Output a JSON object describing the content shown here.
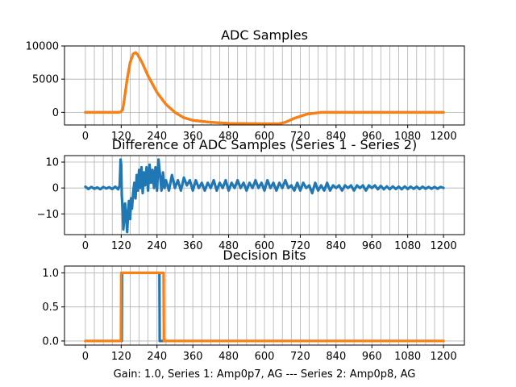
{
  "figure": {
    "footer": "Gain: 1.0, Series 1: Amp0p7, AG --- Series 2: Amp0p8, AG"
  },
  "colors": {
    "series1": "#1f77b4",
    "series2": "#ff7f0e"
  },
  "chart_data": [
    {
      "type": "line",
      "title": "ADC Samples",
      "xlim": [
        -70,
        1270
      ],
      "ylim": [
        -1900,
        10000
      ],
      "xticks": [
        0,
        120,
        240,
        360,
        480,
        600,
        720,
        840,
        960,
        1080,
        1200
      ],
      "xtick_labels": [
        "0",
        "120",
        "240",
        "360",
        "480",
        "600",
        "720",
        "840",
        "960",
        "1080",
        "1200"
      ],
      "yticks": [
        0,
        5000,
        10000
      ],
      "ytick_labels": [
        "0",
        "5000",
        "10000"
      ],
      "series": [
        {
          "name": "Series 1",
          "color": "#1f77b4",
          "points": [
            [
              0,
              0
            ],
            [
              110,
              0
            ],
            [
              118,
              50
            ],
            [
              125,
              400
            ],
            [
              130,
              1800
            ],
            [
              140,
              5000
            ],
            [
              150,
              7500
            ],
            [
              160,
              8800
            ],
            [
              168,
              9000
            ],
            [
              175,
              8700
            ],
            [
              190,
              7500
            ],
            [
              210,
              5500
            ],
            [
              240,
              3000
            ],
            [
              270,
              1200
            ],
            [
              300,
              0
            ],
            [
              330,
              -800
            ],
            [
              360,
              -1200
            ],
            [
              420,
              -1500
            ],
            [
              480,
              -1650
            ],
            [
              540,
              -1700
            ],
            [
              600,
              -1720
            ],
            [
              650,
              -1700
            ],
            [
              670,
              -1500
            ],
            [
              700,
              -900
            ],
            [
              740,
              -300
            ],
            [
              790,
              0
            ],
            [
              1200,
              0
            ]
          ]
        },
        {
          "name": "Series 2",
          "color": "#ff7f0e",
          "points": [
            [
              0,
              0
            ],
            [
              110,
              0
            ],
            [
              118,
              50
            ],
            [
              125,
              400
            ],
            [
              130,
              1800
            ],
            [
              140,
              5000
            ],
            [
              150,
              7500
            ],
            [
              160,
              8800
            ],
            [
              168,
              9000
            ],
            [
              175,
              8700
            ],
            [
              190,
              7500
            ],
            [
              210,
              5500
            ],
            [
              240,
              3000
            ],
            [
              270,
              1200
            ],
            [
              300,
              0
            ],
            [
              330,
              -800
            ],
            [
              360,
              -1200
            ],
            [
              420,
              -1500
            ],
            [
              480,
              -1650
            ],
            [
              540,
              -1700
            ],
            [
              600,
              -1720
            ],
            [
              650,
              -1700
            ],
            [
              670,
              -1500
            ],
            [
              700,
              -900
            ],
            [
              740,
              -300
            ],
            [
              790,
              0
            ],
            [
              1200,
              0
            ]
          ]
        }
      ]
    },
    {
      "type": "line",
      "title": "Difference of ADC Samples (Series 1 - Series 2)",
      "xlim": [
        -70,
        1270
      ],
      "ylim": [
        -18,
        12.5
      ],
      "xticks": [
        0,
        120,
        240,
        360,
        480,
        600,
        720,
        840,
        960,
        1080,
        1200
      ],
      "xtick_labels": [
        "0",
        "120",
        "240",
        "360",
        "480",
        "600",
        "720",
        "840",
        "960",
        "1080",
        "1200"
      ],
      "yticks": [
        -10,
        0,
        10
      ],
      "ytick_labels": [
        "−10",
        "0",
        "10"
      ],
      "series": [
        {
          "name": "Series 1 - Series 2",
          "color": "#1f77b4",
          "points": [
            [
              0,
              0.5
            ],
            [
              10,
              -0.4
            ],
            [
              20,
              0.4
            ],
            [
              30,
              -0.3
            ],
            [
              40,
              0.2
            ],
            [
              50,
              -0.5
            ],
            [
              60,
              0.4
            ],
            [
              70,
              -0.2
            ],
            [
              80,
              0.3
            ],
            [
              90,
              -0.4
            ],
            [
              100,
              0.5
            ],
            [
              110,
              -0.5
            ],
            [
              115,
              1
            ],
            [
              118,
              11
            ],
            [
              120,
              9
            ],
            [
              122,
              -3
            ],
            [
              125,
              -8
            ],
            [
              127,
              -16
            ],
            [
              130,
              -12
            ],
            [
              133,
              -6
            ],
            [
              136,
              -10
            ],
            [
              140,
              -17
            ],
            [
              143,
              -10
            ],
            [
              146,
              -5
            ],
            [
              150,
              -12
            ],
            [
              153,
              -4
            ],
            [
              156,
              -8
            ],
            [
              160,
              -2
            ],
            [
              164,
              2
            ],
            [
              168,
              -4
            ],
            [
              172,
              5
            ],
            [
              176,
              -1
            ],
            [
              180,
              7
            ],
            [
              184,
              0
            ],
            [
              188,
              8
            ],
            [
              192,
              -2
            ],
            [
              196,
              6
            ],
            [
              200,
              1
            ],
            [
              205,
              8
            ],
            [
              210,
              -1
            ],
            [
              215,
              9
            ],
            [
              220,
              2
            ],
            [
              225,
              7
            ],
            [
              230,
              0
            ],
            [
              235,
              8
            ],
            [
              240,
              -1
            ],
            [
              245,
              11
            ],
            [
              250,
              5
            ],
            [
              255,
              -1
            ],
            [
              260,
              6
            ],
            [
              265,
              0
            ],
            [
              270,
              3
            ],
            [
              280,
              -1
            ],
            [
              290,
              5
            ],
            [
              300,
              0
            ],
            [
              310,
              3
            ],
            [
              320,
              -1
            ],
            [
              330,
              4
            ],
            [
              340,
              1
            ],
            [
              350,
              3
            ],
            [
              360,
              -1
            ],
            [
              370,
              3
            ],
            [
              380,
              0
            ],
            [
              390,
              2
            ],
            [
              400,
              -1
            ],
            [
              410,
              2
            ],
            [
              420,
              0
            ],
            [
              430,
              3
            ],
            [
              440,
              -1
            ],
            [
              450,
              2
            ],
            [
              460,
              0
            ],
            [
              470,
              3
            ],
            [
              480,
              -1
            ],
            [
              490,
              2
            ],
            [
              500,
              0
            ],
            [
              510,
              3
            ],
            [
              520,
              0
            ],
            [
              530,
              2
            ],
            [
              540,
              -1
            ],
            [
              550,
              2
            ],
            [
              560,
              0
            ],
            [
              570,
              3
            ],
            [
              580,
              0
            ],
            [
              590,
              2
            ],
            [
              600,
              -1
            ],
            [
              610,
              3
            ],
            [
              620,
              0
            ],
            [
              630,
              2
            ],
            [
              640,
              -1
            ],
            [
              650,
              2
            ],
            [
              660,
              0
            ],
            [
              670,
              3
            ],
            [
              680,
              0
            ],
            [
              690,
              1
            ],
            [
              700,
              -1
            ],
            [
              710,
              2
            ],
            [
              720,
              -1
            ],
            [
              730,
              2
            ],
            [
              740,
              0
            ],
            [
              750,
              1
            ],
            [
              760,
              -2
            ],
            [
              770,
              2
            ],
            [
              780,
              -1
            ],
            [
              790,
              1
            ],
            [
              800,
              -1
            ],
            [
              810,
              2
            ],
            [
              820,
              -1
            ],
            [
              830,
              1
            ],
            [
              840,
              0
            ],
            [
              850,
              1
            ],
            [
              860,
              -1
            ],
            [
              870,
              1
            ],
            [
              880,
              0
            ],
            [
              890,
              1
            ],
            [
              900,
              -1
            ],
            [
              910,
              1
            ],
            [
              920,
              0
            ],
            [
              930,
              1
            ],
            [
              940,
              -1
            ],
            [
              950,
              1
            ],
            [
              960,
              0
            ],
            [
              970,
              1
            ],
            [
              980,
              -0.5
            ],
            [
              990,
              0.8
            ],
            [
              1000,
              -0.5
            ],
            [
              1010,
              0.6
            ],
            [
              1020,
              -0.5
            ],
            [
              1030,
              0.6
            ],
            [
              1040,
              -0.4
            ],
            [
              1050,
              0.5
            ],
            [
              1060,
              -0.5
            ],
            [
              1070,
              0.6
            ],
            [
              1080,
              -0.4
            ],
            [
              1090,
              0.5
            ],
            [
              1100,
              -0.3
            ],
            [
              1110,
              0.5
            ],
            [
              1120,
              -0.4
            ],
            [
              1130,
              0.5
            ],
            [
              1140,
              -0.3
            ],
            [
              1150,
              0.4
            ],
            [
              1160,
              -0.3
            ],
            [
              1170,
              0.4
            ],
            [
              1180,
              -0.3
            ],
            [
              1190,
              0.4
            ],
            [
              1200,
              0
            ]
          ]
        }
      ]
    },
    {
      "type": "line",
      "title": "Decision Bits",
      "xlabel": "Gain: 1.0, Series 1: Amp0p7, AG --- Series 2: Amp0p8, AG",
      "xlim": [
        -70,
        1270
      ],
      "ylim": [
        -0.06,
        1.1
      ],
      "xticks": [
        0,
        120,
        240,
        360,
        480,
        600,
        720,
        840,
        960,
        1080,
        1200
      ],
      "xtick_labels": [
        "0",
        "120",
        "240",
        "360",
        "480",
        "600",
        "720",
        "840",
        "960",
        "1080",
        "1200"
      ],
      "yticks": [
        0,
        0.5,
        1
      ],
      "ytick_labels": [
        "0.0",
        "0.5",
        "1.0"
      ],
      "series": [
        {
          "name": "Series 1",
          "color": "#1f77b4",
          "points": [
            [
              0,
              0
            ],
            [
              122,
              0
            ],
            [
              123,
              1
            ],
            [
              248,
              1
            ],
            [
              249,
              0
            ],
            [
              1200,
              0
            ]
          ]
        },
        {
          "name": "Series 2",
          "color": "#ff7f0e",
          "points": [
            [
              0,
              0
            ],
            [
              119,
              0
            ],
            [
              120,
              1
            ],
            [
              262,
              1
            ],
            [
              263,
              0
            ],
            [
              1200,
              0
            ]
          ]
        }
      ]
    }
  ]
}
